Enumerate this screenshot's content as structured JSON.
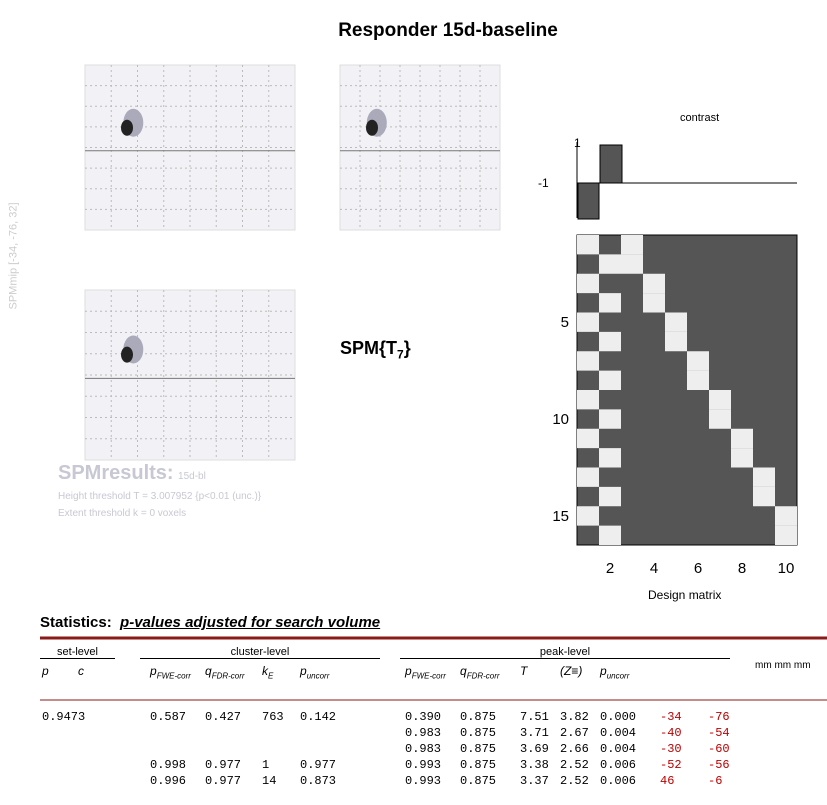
{
  "title": "Responder 15d-baseline",
  "mip": {
    "label": "SPMmip",
    "coordinates": "[-34, -76, 32]"
  },
  "stat_label": {
    "main": "SPM{T",
    "sub": "7",
    "close": "}"
  },
  "results": {
    "title": "SPMresults:",
    "file": "15d-bl",
    "height_threshold": "Height threshold T = 3.007952  {p<0.01 (unc.)}",
    "extent_threshold": "Extent threshold k = 0 voxels"
  },
  "contrast": {
    "title": "contrast",
    "ticks": [
      "1",
      "-1"
    ]
  },
  "design_matrix": {
    "title": "Design matrix",
    "row_ticks": [
      "5",
      "10",
      "15"
    ],
    "col_ticks": [
      "2",
      "4",
      "6",
      "8",
      "10"
    ]
  },
  "statistics": {
    "title": "Statistics:",
    "subtitle": "p-values adjusted for search volume",
    "groups": [
      "set-level",
      "cluster-level",
      "peak-level",
      "mm mm mm"
    ],
    "columns": {
      "set": [
        {
          "symbol": "p"
        },
        {
          "symbol": "c"
        }
      ],
      "cluster": [
        {
          "symbol": "p",
          "sub": "FWE-corr"
        },
        {
          "symbol": "q",
          "sub": "FDR-corr"
        },
        {
          "symbol": "k",
          "sub": "E"
        },
        {
          "symbol": "p",
          "sub": "uncorr"
        }
      ],
      "peak": [
        {
          "symbol": "p",
          "sub": "FWE-corr"
        },
        {
          "symbol": "q",
          "sub": "FDR-corr"
        },
        {
          "symbol": "T"
        },
        {
          "symbol": "(Z≡)"
        },
        {
          "symbol": "p",
          "sub": "uncorr"
        }
      ]
    },
    "rows": [
      {
        "set": [
          "0.9473"
        ],
        "cluster": [
          "0.587",
          "0.427",
          "763",
          "0.142"
        ],
        "peak": [
          "0.390",
          "0.875",
          "7.51",
          "3.82",
          "0.000"
        ],
        "mm": [
          "-34",
          "-76"
        ]
      },
      {
        "peak": [
          "0.983",
          "0.875",
          "3.71",
          "2.67",
          "0.004"
        ],
        "mm": [
          "-40",
          "-54"
        ]
      },
      {
        "peak": [
          "0.983",
          "0.875",
          "3.69",
          "2.66",
          "0.004"
        ],
        "mm": [
          "-30",
          "-60"
        ]
      },
      {
        "cluster": [
          "0.998",
          "0.977",
          "1",
          "0.977"
        ],
        "peak": [
          "0.993",
          "0.875",
          "3.38",
          "2.52",
          "0.006"
        ],
        "mm": [
          "-52",
          "-56"
        ]
      },
      {
        "cluster": [
          "0.996",
          "0.977",
          "14",
          "0.873"
        ],
        "peak": [
          "0.993",
          "0.875",
          "3.37",
          "2.52",
          "0.006"
        ],
        "mm": [
          "46",
          "-6"
        ]
      }
    ]
  }
}
